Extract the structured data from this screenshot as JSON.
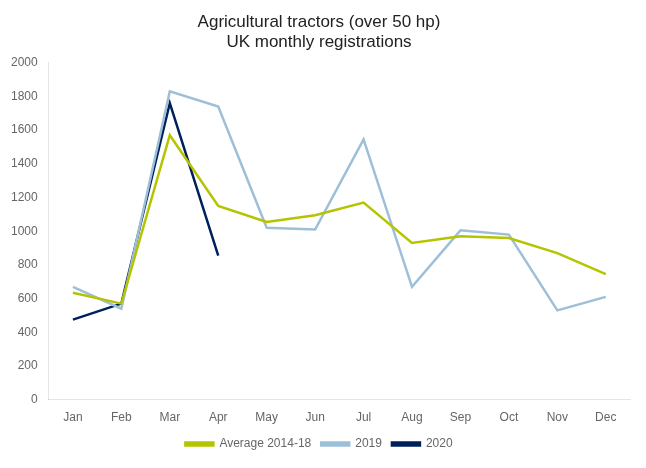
{
  "chart_data": {
    "type": "line",
    "title": "Agricultural tractors (over 50 hp)\nUK monthly registrations",
    "categories": [
      "Jan",
      "Feb",
      "Mar",
      "Apr",
      "May",
      "Jun",
      "Jul",
      "Aug",
      "Sep",
      "Oct",
      "Nov",
      "Dec"
    ],
    "series": [
      {
        "name": "Average 2014-18",
        "color": "#b5c400",
        "values": [
          635,
          570,
          1570,
          1150,
          1055,
          1095,
          1170,
          930,
          970,
          960,
          870,
          745
        ]
      },
      {
        "name": "2019",
        "color": "#9dbfd8",
        "values": [
          670,
          540,
          1830,
          1740,
          1020,
          1010,
          1545,
          670,
          1005,
          980,
          530,
          610
        ]
      },
      {
        "name": "2020",
        "color": "#00205c",
        "values": [
          475,
          570,
          1760,
          855,
          null,
          null,
          null,
          null,
          null,
          null,
          null,
          null
        ]
      }
    ],
    "ylim": [
      0,
      2000
    ],
    "yticks": [
      0,
      200,
      400,
      600,
      800,
      1000,
      1200,
      1400,
      1600,
      1800,
      2000
    ],
    "grid": false,
    "legend": "bottom"
  }
}
